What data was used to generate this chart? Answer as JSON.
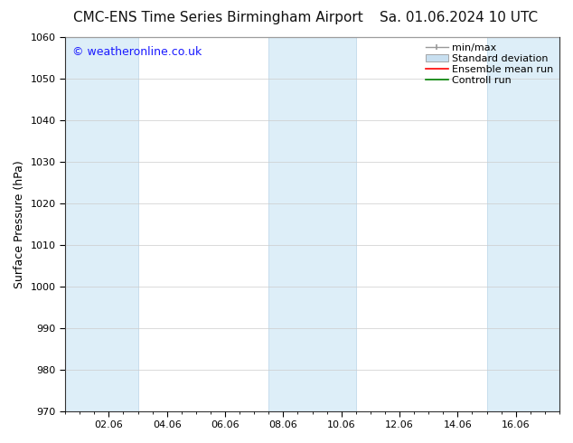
{
  "title_left": "CMC-ENS Time Series Birmingham Airport",
  "title_right": "Sa. 01.06.2024 10 UTC",
  "ylabel": "Surface Pressure (hPa)",
  "ylim": [
    970,
    1060
  ],
  "yticks": [
    970,
    980,
    990,
    1000,
    1010,
    1020,
    1030,
    1040,
    1050,
    1060
  ],
  "xlim_start": 0.5,
  "xlim_end": 17.5,
  "xtick_labels": [
    "02.06",
    "04.06",
    "06.06",
    "08.06",
    "10.06",
    "12.06",
    "14.06",
    "16.06"
  ],
  "xtick_positions": [
    2,
    4,
    6,
    8,
    10,
    12,
    14,
    16
  ],
  "watermark": "© weatheronline.co.uk",
  "watermark_color": "#1a1aff",
  "background_color": "#ffffff",
  "shaded_bands": [
    {
      "x_start": 0.5,
      "x_end": 3.0
    },
    {
      "x_start": 7.5,
      "x_end": 10.5
    },
    {
      "x_start": 15.0,
      "x_end": 17.5
    }
  ],
  "shade_color": "#ddeef8",
  "shade_edge_color": "#b8d4e8",
  "legend_entries": [
    {
      "label": "min/max",
      "color": "#999999",
      "style": "minmax"
    },
    {
      "label": "Standard deviation",
      "color": "#c8dff0",
      "style": "fill"
    },
    {
      "label": "Ensemble mean run",
      "color": "#ff0000",
      "style": "line"
    },
    {
      "label": "Controll run",
      "color": "#008000",
      "style": "line"
    }
  ],
  "title_fontsize": 11,
  "axis_label_fontsize": 9,
  "tick_fontsize": 8,
  "legend_fontsize": 8,
  "watermark_fontsize": 9
}
